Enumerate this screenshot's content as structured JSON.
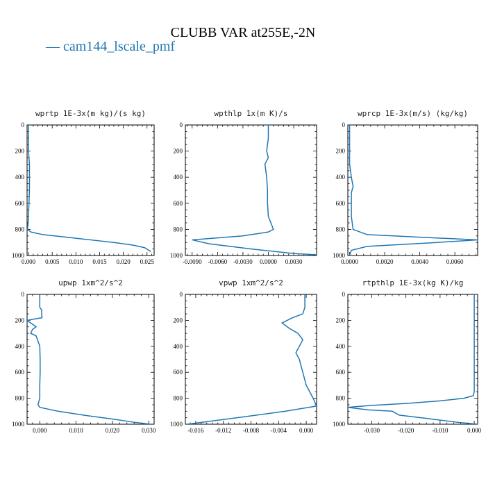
{
  "title": "CLUBB VAR at255E,-2N",
  "legend": {
    "swatch": "—",
    "label": "cam144_lscale_pmf",
    "color": "#1f77b4"
  },
  "chart_data": [
    {
      "type": "line",
      "title": "wprtp  1E-3x(m kg)/(s kg)",
      "xlim": [
        -0.0003,
        0.0265
      ],
      "ylim": [
        0,
        1000
      ],
      "y_inverted": true,
      "xticks": [
        0.0,
        0.005,
        0.01,
        0.015,
        0.02,
        0.025
      ],
      "xtick_labels": [
        "0.000",
        "0.005",
        "0.010",
        "0.015",
        "0.020",
        "0.025"
      ],
      "yticks": [
        0,
        200,
        400,
        600,
        800,
        1000
      ],
      "ytick_labels": [
        "0",
        "200",
        "400",
        "600",
        "800",
        "1000"
      ],
      "series": [
        {
          "x": [
            0.0,
            0.0,
            0.0,
            0.0002,
            0.0002,
            0.0002,
            0.0001,
            0.0,
            -0.0002,
            0.0005,
            0.003,
            0.008,
            0.013,
            0.018,
            0.022,
            0.0245,
            0.0258
          ],
          "y": [
            0,
            100,
            200,
            300,
            400,
            500,
            600,
            700,
            800,
            820,
            840,
            860,
            880,
            900,
            920,
            940,
            970
          ]
        }
      ]
    },
    {
      "type": "line",
      "title": "wpthlp  1x(m K)/s",
      "xlim": [
        -0.0098,
        0.0057
      ],
      "ylim": [
        0,
        1000
      ],
      "y_inverted": true,
      "xticks": [
        -0.009,
        -0.006,
        -0.003,
        0.0,
        0.003
      ],
      "xtick_labels": [
        "-0.0090",
        "-0.0060",
        "-0.0030",
        "0.0000",
        "0.0030"
      ],
      "yticks": [
        0,
        200,
        400,
        600,
        800,
        1000
      ],
      "ytick_labels": [
        "0",
        "200",
        "400",
        "600",
        "800",
        "1000"
      ],
      "series": [
        {
          "x": [
            0.0,
            0.0,
            -0.0002,
            0.0,
            -0.0004,
            -0.0002,
            -0.0001,
            -0.0001,
            0.0,
            0.0006,
            0.0,
            -0.003,
            -0.009,
            -0.007,
            -0.002,
            0.003,
            0.0057
          ],
          "y": [
            0,
            100,
            200,
            250,
            300,
            400,
            500,
            600,
            700,
            800,
            820,
            850,
            880,
            910,
            950,
            985,
            995
          ]
        }
      ]
    },
    {
      "type": "line",
      "title": "wprcp  1E-3x(m/s) (kg/kg)",
      "xlim": [
        -0.0001,
        0.0073
      ],
      "ylim": [
        0,
        1000
      ],
      "y_inverted": true,
      "xticks": [
        0.0,
        0.002,
        0.004,
        0.006
      ],
      "xtick_labels": [
        "0.0000",
        "0.0020",
        "0.0040",
        "0.0060"
      ],
      "yticks": [
        0,
        200,
        400,
        600,
        800,
        1000
      ],
      "ytick_labels": [
        "0",
        "200",
        "400",
        "600",
        "800",
        "1000"
      ],
      "series": [
        {
          "x": [
            0.0,
            0.0,
            0.0,
            0.0,
            0.0001,
            0.0002,
            0.0001,
            0.0001,
            0.0001,
            0.0002,
            0.001,
            0.004,
            0.0073,
            0.005,
            0.001,
            0.0001,
            0.0
          ],
          "y": [
            0,
            100,
            200,
            300,
            400,
            470,
            520,
            600,
            700,
            800,
            840,
            860,
            880,
            900,
            930,
            960,
            1000
          ]
        }
      ]
    },
    {
      "type": "line",
      "title": "upwp  1xm^2/s^2",
      "xlim": [
        -0.0035,
        0.0315
      ],
      "ylim": [
        0,
        1000
      ],
      "y_inverted": true,
      "xticks": [
        0.0,
        0.01,
        0.02,
        0.03
      ],
      "xtick_labels": [
        "0.000",
        "0.010",
        "0.020",
        "0.030"
      ],
      "yticks": [
        0,
        200,
        400,
        600,
        800,
        1000
      ],
      "ytick_labels": [
        "0",
        "200",
        "400",
        "600",
        "800",
        "1000"
      ],
      "series": [
        {
          "x": [
            0.0,
            0.0,
            0.0005,
            0.0006,
            -0.0035,
            -0.001,
            -0.002,
            -0.0025,
            -0.001,
            0.0,
            0.0001,
            0.0001,
            0.0,
            0.0,
            -0.0005,
            0.0,
            0.005,
            0.012,
            0.02,
            0.026,
            0.0305
          ],
          "y": [
            0,
            100,
            120,
            180,
            200,
            250,
            270,
            300,
            320,
            400,
            500,
            600,
            700,
            800,
            850,
            870,
            900,
            930,
            960,
            985,
            1000
          ]
        }
      ]
    },
    {
      "type": "line",
      "title": "vpwp  1xm^2/s^2",
      "xlim": [
        -0.0175,
        0.0015
      ],
      "ylim": [
        0,
        1000
      ],
      "y_inverted": true,
      "xticks": [
        -0.016,
        -0.012,
        -0.008,
        -0.004,
        0.0
      ],
      "xtick_labels": [
        "-0.016",
        "-0.012",
        "-0.008",
        "-0.004",
        "0.000"
      ],
      "yticks": [
        0,
        200,
        400,
        600,
        800,
        1000
      ],
      "ytick_labels": [
        "0",
        "200",
        "400",
        "600",
        "800",
        "1000"
      ],
      "series": [
        {
          "x": [
            -0.0002,
            -0.0002,
            -0.0005,
            -0.002,
            -0.0035,
            -0.0025,
            -0.0012,
            -0.0005,
            -0.001,
            -0.0015,
            -0.001,
            -0.0005,
            0.0,
            0.001,
            0.0015,
            -0.003,
            -0.01,
            -0.0172
          ],
          "y": [
            0,
            100,
            150,
            180,
            220,
            260,
            300,
            350,
            400,
            450,
            500,
            600,
            700,
            800,
            860,
            900,
            950,
            1000
          ]
        }
      ]
    },
    {
      "type": "line",
      "title": "rtpthlp  1E-3x(kg K)/kg",
      "xlim": [
        -0.037,
        0.001
      ],
      "ylim": [
        0,
        1000
      ],
      "y_inverted": true,
      "xticks": [
        -0.03,
        -0.02,
        -0.01,
        0.0
      ],
      "xtick_labels": [
        "-0.030",
        "-0.020",
        "-0.010",
        "0.000"
      ],
      "yticks": [
        0,
        200,
        400,
        600,
        800,
        1000
      ],
      "ytick_labels": [
        "0",
        "200",
        "400",
        "600",
        "800",
        "1000"
      ],
      "series": [
        {
          "x": [
            0.0,
            0.0,
            0.0,
            0.0,
            0.0,
            0.0,
            -0.0003,
            -0.003,
            -0.01,
            -0.02,
            -0.03,
            -0.037,
            -0.031,
            -0.024,
            -0.022,
            -0.014,
            -0.005,
            0.001
          ],
          "y": [
            0,
            200,
            400,
            600,
            700,
            750,
            780,
            800,
            820,
            840,
            855,
            870,
            890,
            900,
            930,
            955,
            985,
            1000
          ]
        }
      ]
    }
  ]
}
